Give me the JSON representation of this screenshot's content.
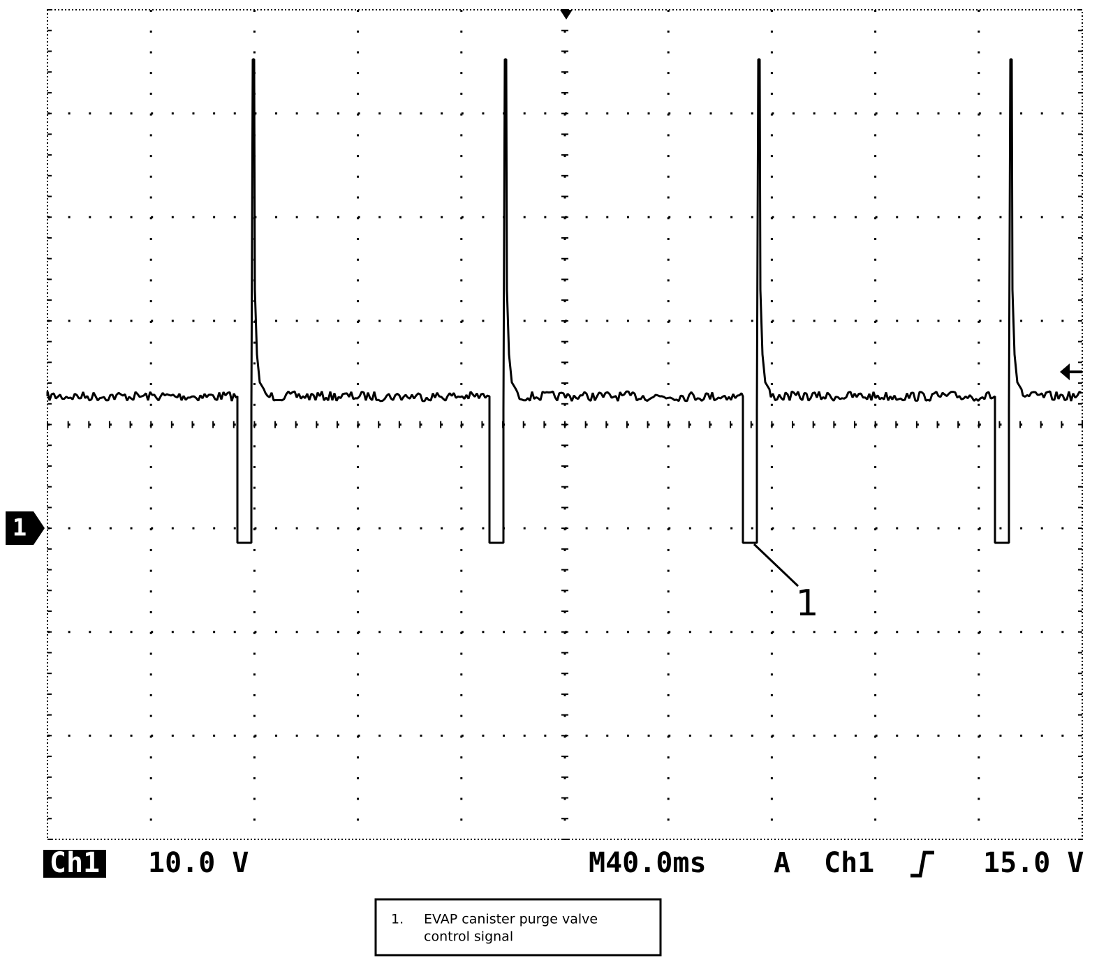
{
  "scope": {
    "channel_marker": "1",
    "callout": "1",
    "status": {
      "channel": "Ch1",
      "volts_per_div": "10.0 V",
      "timebase": "M40.0ms",
      "trigger_mode": "A",
      "trigger_source": "Ch1",
      "trigger_level": "15.0 V"
    }
  },
  "legend": {
    "number": "1.",
    "lines": [
      "EVAP canister purge valve",
      "control signal"
    ]
  }
}
